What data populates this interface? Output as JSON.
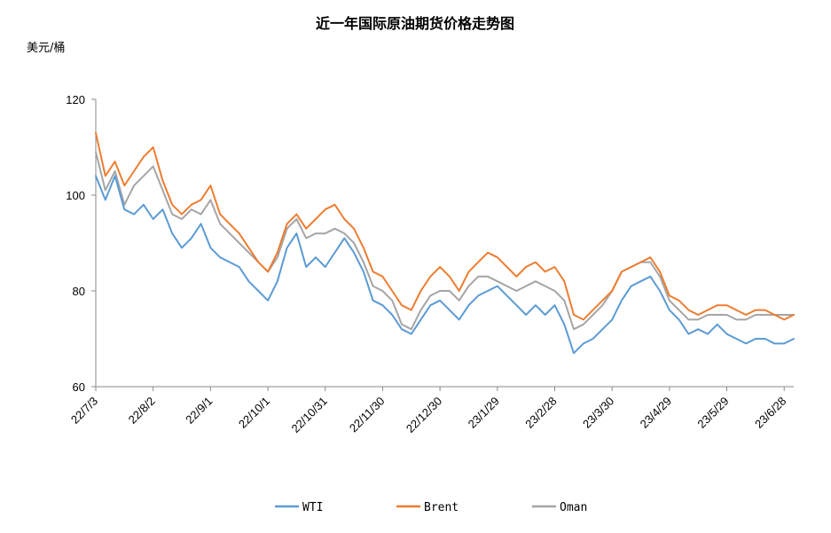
{
  "chart_data": {
    "type": "line",
    "title": "近一年国际原油期货价格走势图",
    "ylabel": "美元/桶",
    "xlabel": "",
    "ylim": [
      60,
      120
    ],
    "yticks": [
      60,
      80,
      100,
      120
    ],
    "xticks": [
      "22/7/3",
      "22/8/2",
      "22/9/1",
      "22/10/1",
      "22/10/31",
      "22/11/30",
      "22/12/30",
      "23/1/29",
      "23/2/28",
      "23/3/30",
      "23/4/29",
      "23/5/29",
      "23/6/28"
    ],
    "legend_position": "bottom",
    "grid": false,
    "x": [
      "22/7/3",
      "22/7/8",
      "22/7/13",
      "22/7/18",
      "22/7/23",
      "22/7/28",
      "22/8/2",
      "22/8/7",
      "22/8/12",
      "22/8/17",
      "22/8/22",
      "22/8/27",
      "22/9/1",
      "22/9/6",
      "22/9/11",
      "22/9/16",
      "22/9/21",
      "22/9/26",
      "22/10/1",
      "22/10/6",
      "22/10/11",
      "22/10/16",
      "22/10/21",
      "22/10/26",
      "22/10/31",
      "22/11/5",
      "22/11/10",
      "22/11/15",
      "22/11/20",
      "22/11/25",
      "22/11/30",
      "22/12/5",
      "22/12/10",
      "22/12/15",
      "22/12/20",
      "22/12/25",
      "22/12/30",
      "23/1/4",
      "23/1/9",
      "23/1/14",
      "23/1/19",
      "23/1/24",
      "23/1/29",
      "23/2/3",
      "23/2/8",
      "23/2/13",
      "23/2/18",
      "23/2/23",
      "23/2/28",
      "23/3/5",
      "23/3/10",
      "23/3/15",
      "23/3/20",
      "23/3/25",
      "23/3/30",
      "23/4/4",
      "23/4/9",
      "23/4/14",
      "23/4/19",
      "23/4/24",
      "23/4/29",
      "23/5/4",
      "23/5/9",
      "23/5/14",
      "23/5/19",
      "23/5/24",
      "23/5/29",
      "23/6/3",
      "23/6/8",
      "23/6/13",
      "23/6/18",
      "23/6/23",
      "23/6/28",
      "23/6/30"
    ],
    "series": [
      {
        "name": "WTI",
        "color": "#5b9bd5",
        "values": [
          104,
          99,
          104,
          97,
          96,
          98,
          95,
          97,
          92,
          89,
          91,
          94,
          89,
          87,
          86,
          85,
          82,
          80,
          78,
          82,
          89,
          92,
          85,
          87,
          85,
          88,
          91,
          88,
          84,
          78,
          77,
          75,
          72,
          71,
          74,
          77,
          78,
          76,
          74,
          77,
          79,
          80,
          81,
          79,
          77,
          75,
          77,
          75,
          77,
          73,
          67,
          69,
          70,
          72,
          74,
          78,
          81,
          82,
          83,
          80,
          76,
          74,
          71,
          72,
          71,
          73,
          71,
          70,
          69,
          70,
          70,
          69,
          69,
          70
        ]
      },
      {
        "name": "Brent",
        "color": "#ed7d31",
        "values": [
          113,
          104,
          107,
          102,
          105,
          108,
          110,
          103,
          98,
          96,
          98,
          99,
          102,
          96,
          94,
          92,
          89,
          86,
          84,
          88,
          94,
          96,
          93,
          95,
          97,
          98,
          95,
          93,
          89,
          84,
          83,
          80,
          77,
          76,
          80,
          83,
          85,
          83,
          80,
          84,
          86,
          88,
          87,
          85,
          83,
          85,
          86,
          84,
          85,
          82,
          75,
          74,
          76,
          78,
          80,
          84,
          85,
          86,
          87,
          84,
          79,
          78,
          76,
          75,
          76,
          77,
          77,
          76,
          75,
          76,
          76,
          75,
          74,
          75
        ]
      },
      {
        "name": "Oman",
        "color": "#a5a5a5",
        "values": [
          109,
          101,
          105,
          98,
          102,
          104,
          106,
          101,
          96,
          95,
          97,
          96,
          99,
          94,
          92,
          90,
          88,
          86,
          84,
          87,
          93,
          95,
          91,
          92,
          92,
          93,
          92,
          90,
          86,
          81,
          80,
          78,
          73,
          72,
          76,
          79,
          80,
          80,
          78,
          81,
          83,
          83,
          82,
          81,
          80,
          81,
          82,
          81,
          80,
          78,
          72,
          73,
          75,
          77,
          80,
          84,
          85,
          86,
          86,
          83,
          78,
          76,
          74,
          74,
          75,
          75,
          75,
          74,
          74,
          75,
          75,
          75,
          75,
          75
        ]
      }
    ]
  }
}
